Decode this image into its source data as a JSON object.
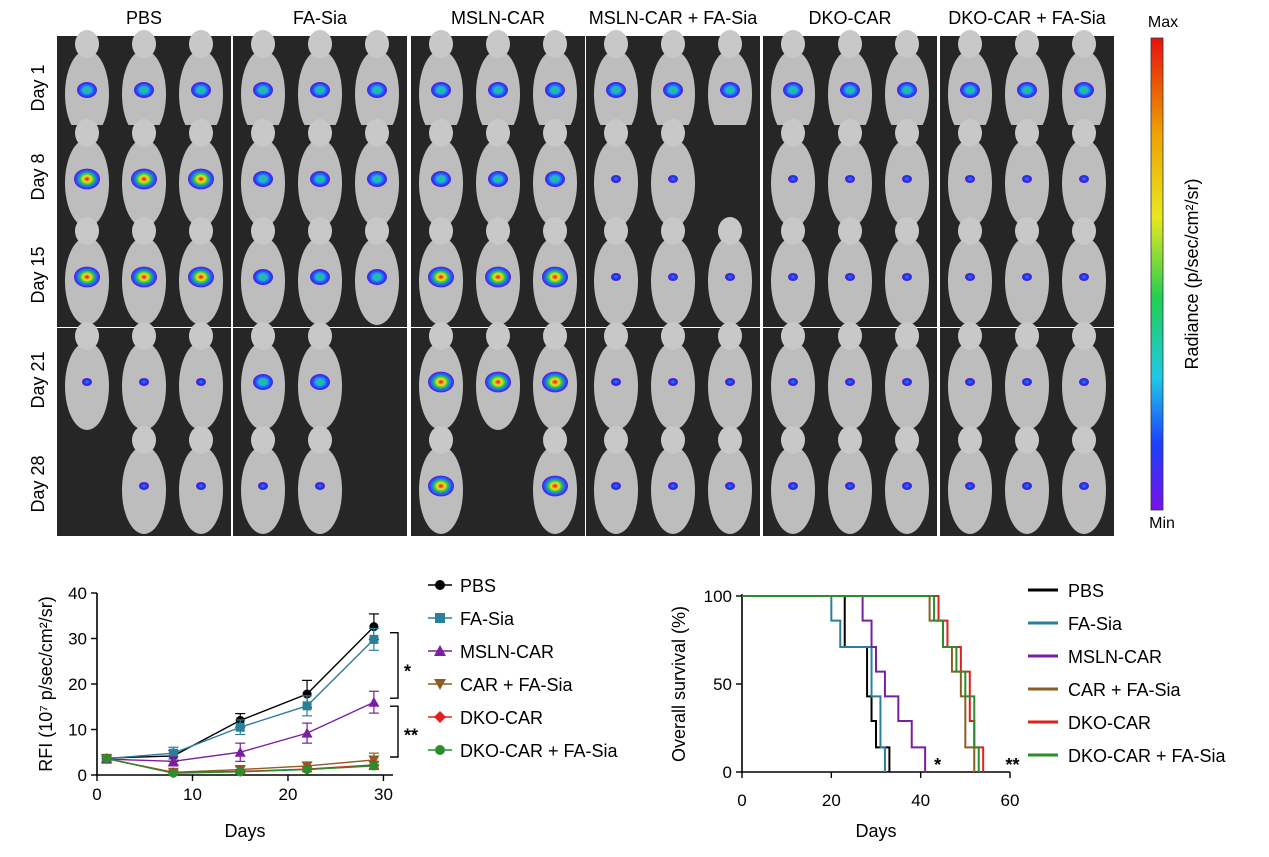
{
  "imaging": {
    "groups": [
      "PBS",
      "FA-Sia",
      "MSLN-CAR",
      "MSLN-CAR + FA-Sia",
      "DKO-CAR",
      "DKO-CAR + FA-Sia"
    ],
    "days": [
      "Day 1",
      "Day 8",
      "Day 15",
      "Day 21",
      "Day 28"
    ],
    "colorbar": {
      "max_label": "Max",
      "min_label": "Min",
      "title": "Radiance (p/sec/cm²/sr)"
    }
  },
  "chart_data": [
    {
      "type": "line",
      "title": "",
      "xlabel": "Days",
      "ylabel": "RFI (10⁷ p/sec/cm²/sr)",
      "xlim": [
        0,
        31
      ],
      "ylim": [
        0,
        40
      ],
      "xticks": [
        0,
        10,
        20,
        30
      ],
      "yticks": [
        0,
        10,
        20,
        30,
        40
      ],
      "x": [
        1,
        8,
        15,
        22,
        29
      ],
      "series": [
        {
          "name": "PBS",
          "color": "#000000",
          "marker": "circle",
          "values": [
            3.7,
            4.2,
            12.0,
            17.8,
            32.6
          ],
          "errors": [
            0.8,
            1.2,
            1.5,
            3.0,
            2.8
          ]
        },
        {
          "name": "FA-Sia",
          "color": "#2a7f9b",
          "marker": "square",
          "values": [
            3.6,
            4.8,
            10.5,
            15.2,
            29.8
          ],
          "errors": [
            0.7,
            1.3,
            1.6,
            2.2,
            2.4
          ]
        },
        {
          "name": "MSLN-CAR",
          "color": "#7a1fa2",
          "marker": "triangle-up",
          "values": [
            3.5,
            3.0,
            5.0,
            9.2,
            16.0
          ],
          "errors": [
            0.6,
            1.0,
            2.0,
            2.2,
            2.4
          ]
        },
        {
          "name": "CAR + FA-Sia",
          "color": "#8b5e22",
          "marker": "triangle-down",
          "values": [
            3.6,
            0.6,
            1.2,
            2.0,
            3.3
          ],
          "errors": [
            0.6,
            0.4,
            0.6,
            0.8,
            1.5
          ]
        },
        {
          "name": "DKO-CAR",
          "color": "#e0201b",
          "marker": "diamond",
          "values": [
            3.6,
            0.5,
            0.8,
            1.3,
            2.2
          ],
          "errors": [
            0.6,
            0.3,
            0.4,
            0.5,
            0.8
          ]
        },
        {
          "name": "DKO-CAR + FA-Sia",
          "color": "#2e8b2e",
          "marker": "circle",
          "values": [
            3.6,
            0.4,
            0.7,
            1.2,
            2.0
          ],
          "errors": [
            0.6,
            0.3,
            0.4,
            0.5,
            0.8
          ]
        }
      ],
      "significance": [
        {
          "label": "*",
          "between": [
            "PBS",
            "MSLN-CAR"
          ]
        },
        {
          "label": "**",
          "between": [
            "MSLN-CAR",
            "DKO-CAR"
          ]
        }
      ]
    },
    {
      "type": "line",
      "subtype": "kaplan-meier",
      "title": "",
      "xlabel": "Days",
      "ylabel": "Overall survival (%)",
      "xlim": [
        0,
        60
      ],
      "ylim": [
        0,
        100
      ],
      "xticks": [
        0,
        20,
        40,
        60
      ],
      "yticks": [
        0,
        50,
        100
      ],
      "series": [
        {
          "name": "PBS",
          "color": "#000000",
          "steps": [
            [
              0,
              100
            ],
            [
              23,
              100
            ],
            [
              23,
              71
            ],
            [
              28,
              71
            ],
            [
              28,
              43
            ],
            [
              29,
              43
            ],
            [
              29,
              29
            ],
            [
              30,
              29
            ],
            [
              30,
              14
            ],
            [
              33,
              14
            ],
            [
              33,
              0
            ]
          ]
        },
        {
          "name": "FA-Sia",
          "color": "#2a7f9b",
          "steps": [
            [
              0,
              100
            ],
            [
              20,
              100
            ],
            [
              20,
              86
            ],
            [
              22,
              86
            ],
            [
              22,
              71
            ],
            [
              29,
              71
            ],
            [
              29,
              43
            ],
            [
              31,
              43
            ],
            [
              31,
              14
            ],
            [
              32,
              14
            ],
            [
              32,
              0
            ]
          ]
        },
        {
          "name": "MSLN-CAR",
          "color": "#7a1fa2",
          "steps": [
            [
              0,
              100
            ],
            [
              27,
              100
            ],
            [
              27,
              86
            ],
            [
              29,
              86
            ],
            [
              29,
              71
            ],
            [
              30,
              71
            ],
            [
              30,
              57
            ],
            [
              32,
              57
            ],
            [
              32,
              43
            ],
            [
              35,
              43
            ],
            [
              35,
              29
            ],
            [
              38,
              29
            ],
            [
              38,
              14
            ],
            [
              41,
              14
            ],
            [
              41,
              0
            ]
          ]
        },
        {
          "name": "CAR + FA-Sia",
          "color": "#8b5e22",
          "steps": [
            [
              0,
              100
            ],
            [
              42,
              100
            ],
            [
              42,
              86
            ],
            [
              45,
              86
            ],
            [
              45,
              71
            ],
            [
              47,
              71
            ],
            [
              47,
              57
            ],
            [
              49,
              57
            ],
            [
              49,
              43
            ],
            [
              50,
              43
            ],
            [
              50,
              14
            ],
            [
              52,
              14
            ],
            [
              52,
              0
            ]
          ]
        },
        {
          "name": "DKO-CAR",
          "color": "#e0201b",
          "steps": [
            [
              0,
              100
            ],
            [
              44,
              100
            ],
            [
              44,
              86
            ],
            [
              46,
              86
            ],
            [
              46,
              71
            ],
            [
              49,
              71
            ],
            [
              49,
              57
            ],
            [
              51,
              57
            ],
            [
              51,
              29
            ],
            [
              52,
              29
            ],
            [
              52,
              14
            ],
            [
              54,
              14
            ],
            [
              54,
              0
            ]
          ]
        },
        {
          "name": "DKO-CAR + FA-Sia",
          "color": "#2e8b2e",
          "steps": [
            [
              0,
              100
            ],
            [
              43,
              100
            ],
            [
              43,
              86
            ],
            [
              45,
              86
            ],
            [
              45,
              71
            ],
            [
              48,
              71
            ],
            [
              48,
              57
            ],
            [
              50,
              57
            ],
            [
              50,
              43
            ],
            [
              52,
              43
            ],
            [
              52,
              14
            ],
            [
              53,
              14
            ],
            [
              53,
              0
            ]
          ]
        }
      ],
      "annotations": [
        {
          "label": "*",
          "x": 43,
          "y": 5
        },
        {
          "label": "**",
          "x": 59,
          "y": 5
        }
      ]
    }
  ]
}
